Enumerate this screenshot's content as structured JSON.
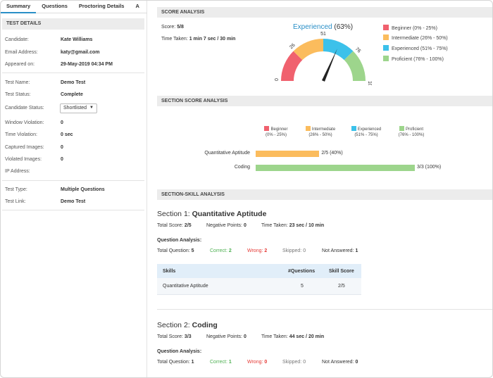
{
  "tabs": [
    "Summary",
    "Questions",
    "Proctoring Details",
    "A"
  ],
  "test_details": {
    "heading": "TEST DETAILS",
    "rows": [
      {
        "label": "Candidate:",
        "value": "Kate Williams"
      },
      {
        "label": "Email Address:",
        "value": "katy@gmail.com"
      },
      {
        "label": "Appeared on:",
        "value": "29-May-2019 04:34 PM"
      },
      {
        "label": "Test Name:",
        "value": "Demo Test"
      },
      {
        "label": "Test Status:",
        "value": "Complete"
      },
      {
        "label": "Candidate Status:",
        "value": "Shortlisted"
      },
      {
        "label": "Window Violation:",
        "value": "0"
      },
      {
        "label": "Time Violation:",
        "value": "0 sec"
      },
      {
        "label": "Captured Images:",
        "value": "0"
      },
      {
        "label": "Violated Images:",
        "value": "0"
      },
      {
        "label": "IP Address:",
        "value": ""
      },
      {
        "label": "Test Type:",
        "value": "Multiple Questions"
      },
      {
        "label": "Test Link:",
        "value": "Demo Test"
      }
    ]
  },
  "score_analysis": {
    "heading": "SCORE ANALYSIS",
    "score_label": "Score:",
    "score_value": "5/8",
    "time_label": "Time Taken:",
    "time_value": "1 min 7 sec / 30 min",
    "level": "Experienced",
    "percent": "(63%)",
    "gauge_value": 63,
    "gauge_ticks": [
      "0",
      "26",
      "51",
      "76",
      "100"
    ],
    "legend": [
      {
        "label": "Beginner (0% - 25%)",
        "color": "#f0616e"
      },
      {
        "label": "Intermediate (26% - 50%)",
        "color": "#fbbc5d"
      },
      {
        "label": "Experienced (51% - 75%)",
        "color": "#3cc1ea"
      },
      {
        "label": "Proficient (76% - 100%)",
        "color": "#9dd58c"
      }
    ]
  },
  "section_score": {
    "heading": "SECTION SCORE ANALYSIS",
    "legend": [
      {
        "name": "Beginner",
        "range": "(0% - 25%)",
        "color": "#f0616e"
      },
      {
        "name": "Intermediate",
        "range": "(26% - 50%)",
        "color": "#fbbc5d"
      },
      {
        "name": "Experienced",
        "range": "(51% - 75%)",
        "color": "#3cc1ea"
      },
      {
        "name": "Proficient",
        "range": "(76% - 100%)",
        "color": "#9dd58c"
      }
    ],
    "bars": [
      {
        "label": "Quantitative Aptitude",
        "value_text": "2/5 (40%)",
        "percent": 40,
        "color": "#fbbc5d"
      },
      {
        "label": "Coding",
        "value_text": "3/3 (100%)",
        "percent": 100,
        "color": "#9dd58c"
      }
    ]
  },
  "skill_analysis": {
    "heading": "SECTION-SKILL ANALYSIS",
    "sections": [
      {
        "prefix": "Section 1:",
        "name": "Quantitative Aptitude",
        "total_score_label": "Total Score:",
        "total_score": "2/5",
        "negative_label": "Negative Points:",
        "negative": "0",
        "time_label": "Time Taken:",
        "time": "23 sec / 10 min",
        "qa_heading": "Question Analysis:",
        "total_q_label": "Total Question:",
        "total_q": "5",
        "correct_label": "Correct:",
        "correct": "2",
        "wrong_label": "Wrong:",
        "wrong": "2",
        "skipped_label": "Skipped:",
        "skipped": "0",
        "not_answered_label": "Not Answered:",
        "not_answered": "1",
        "table": {
          "headers": [
            "Skills",
            "#Questions",
            "Skill Score"
          ],
          "rows": [
            [
              "Quantitative Aptitude",
              "5",
              "2/5"
            ]
          ]
        }
      },
      {
        "prefix": "Section 2:",
        "name": "Coding",
        "total_score_label": "Total Score:",
        "total_score": "3/3",
        "negative_label": "Negative Points:",
        "negative": "0",
        "time_label": "Time Taken:",
        "time": "44 sec / 20 min",
        "qa_heading": "Question Analysis:",
        "total_q_label": "Total Question:",
        "total_q": "1",
        "correct_label": "Correct:",
        "correct": "1",
        "wrong_label": "Wrong:",
        "wrong": "0",
        "skipped_label": "Skipped:",
        "skipped": "0",
        "not_answered_label": "Not Answered:",
        "not_answered": "0"
      }
    ]
  },
  "colors": {
    "accent": "#2a8fc7",
    "correct": "#4caf50",
    "wrong": "#e53935",
    "muted": "#777777"
  }
}
